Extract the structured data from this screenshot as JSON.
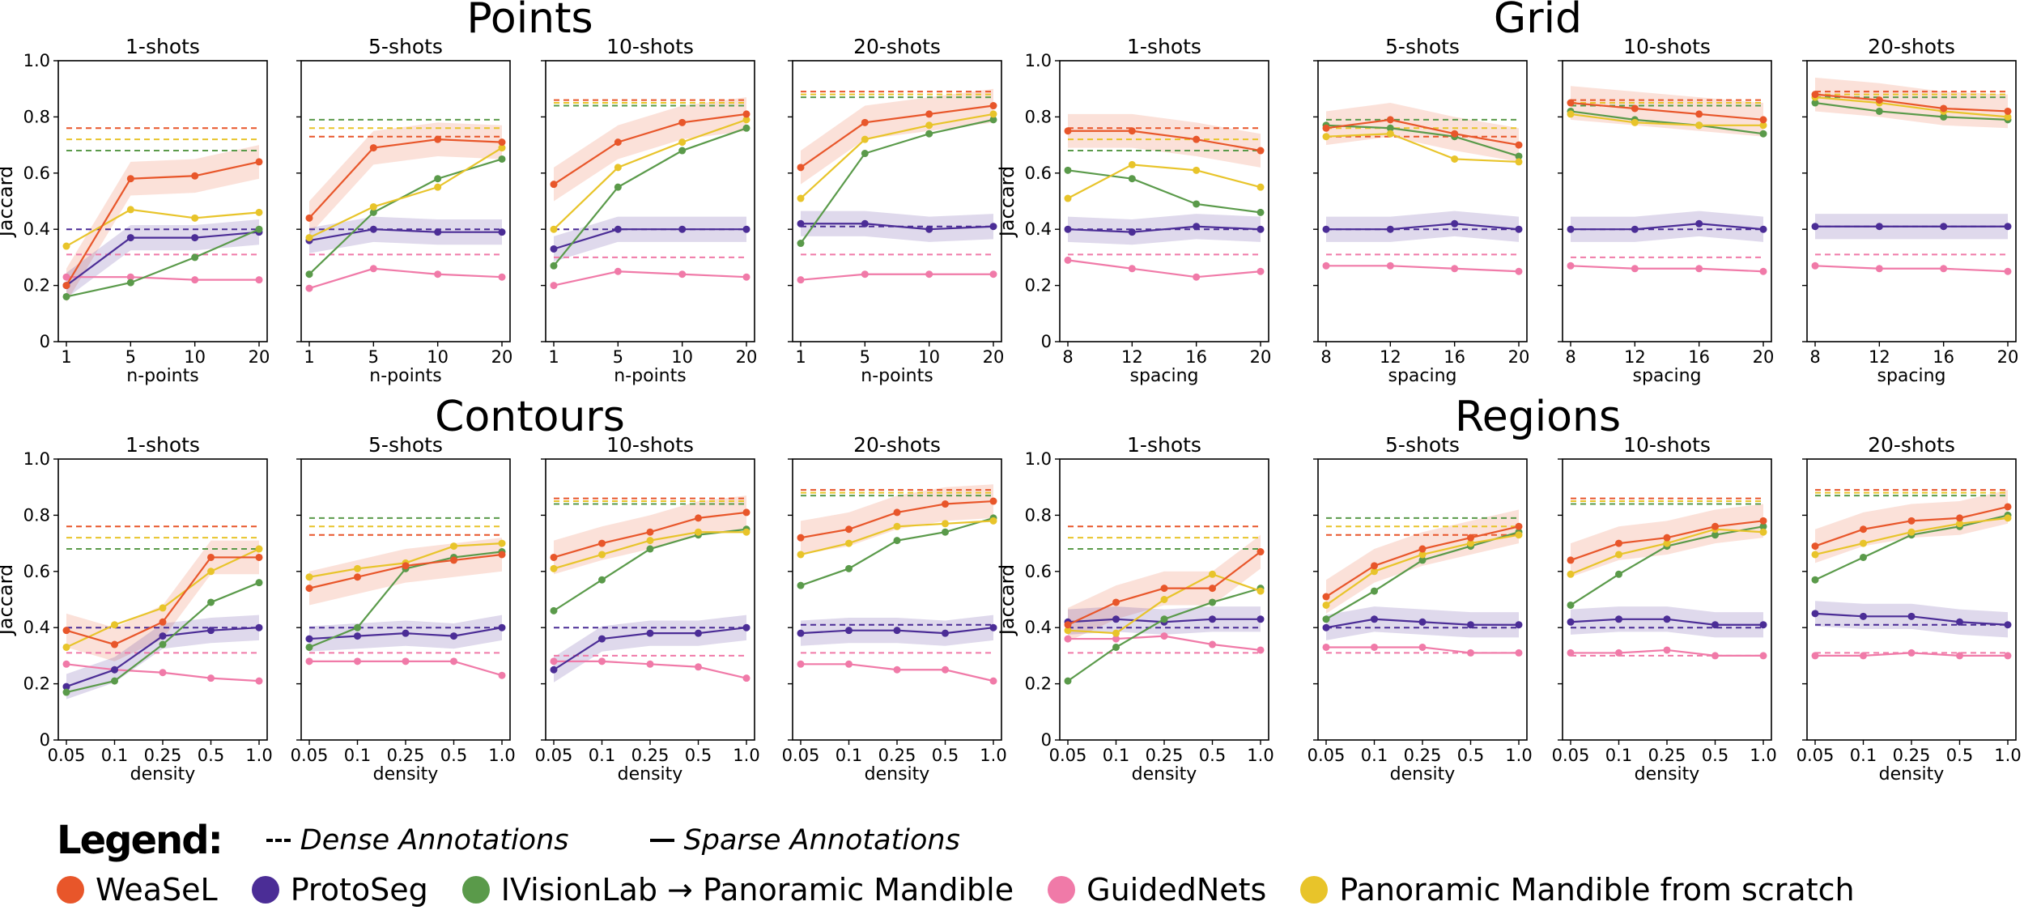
{
  "colors": {
    "weasel": "#e8562a",
    "protoseg": "#4b2d96",
    "ivisionlab": "#5a9a4a",
    "guidednets": "#f07aa8",
    "scratch": "#e8c42a"
  },
  "legend": {
    "title": "Legend:",
    "styles": [
      {
        "kind": "dashed",
        "label": "Dense Annotations"
      },
      {
        "kind": "solid",
        "label": "Sparse Annotations"
      }
    ],
    "methods": [
      {
        "key": "weasel",
        "label": "WeaSeL"
      },
      {
        "key": "protoseg",
        "label": "ProtoSeg"
      },
      {
        "key": "ivisionlab",
        "label": "IVisionLab → Panoramic Mandible"
      },
      {
        "key": "guidednets",
        "label": "GuidedNets"
      },
      {
        "key": "scratch",
        "label": "Panoramic Mandible from scratch"
      }
    ]
  },
  "chart_data": [
    {
      "title": "Points",
      "type": "line",
      "xlabel": "n-points",
      "ylabel": "Jaccard",
      "ylim": [
        0,
        1.0
      ],
      "x": [
        "1",
        "5",
        "10",
        "20"
      ],
      "panels": [
        {
          "title": "1-shots",
          "series": {
            "weasel": [
              0.2,
              0.58,
              0.59,
              0.64
            ],
            "protoseg": [
              0.2,
              0.37,
              0.37,
              0.39
            ],
            "ivisionlab": [
              0.16,
              0.21,
              0.3,
              0.4
            ],
            "guidednets": [
              0.23,
              0.23,
              0.22,
              0.22
            ],
            "scratch": [
              0.34,
              0.47,
              0.44,
              0.46
            ]
          },
          "dense": {
            "weasel": 0.76,
            "protoseg": 0.4,
            "ivisionlab": 0.68,
            "guidednets": 0.31,
            "scratch": 0.72
          }
        },
        {
          "title": "5-shots",
          "series": {
            "weasel": [
              0.44,
              0.69,
              0.72,
              0.71
            ],
            "protoseg": [
              0.36,
              0.4,
              0.39,
              0.39
            ],
            "ivisionlab": [
              0.24,
              0.46,
              0.58,
              0.65
            ],
            "guidednets": [
              0.19,
              0.26,
              0.24,
              0.23
            ],
            "scratch": [
              0.37,
              0.48,
              0.55,
              0.69
            ]
          },
          "dense": {
            "weasel": 0.73,
            "protoseg": 0.4,
            "ivisionlab": 0.79,
            "guidednets": 0.31,
            "scratch": 0.76
          }
        },
        {
          "title": "10-shots",
          "series": {
            "weasel": [
              0.56,
              0.71,
              0.78,
              0.81
            ],
            "protoseg": [
              0.33,
              0.4,
              0.4,
              0.4
            ],
            "ivisionlab": [
              0.27,
              0.55,
              0.68,
              0.76
            ],
            "guidednets": [
              0.2,
              0.25,
              0.24,
              0.23
            ],
            "scratch": [
              0.4,
              0.62,
              0.71,
              0.79
            ]
          },
          "dense": {
            "weasel": 0.86,
            "protoseg": 0.4,
            "ivisionlab": 0.84,
            "guidednets": 0.3,
            "scratch": 0.85
          }
        },
        {
          "title": "20-shots",
          "series": {
            "weasel": [
              0.62,
              0.78,
              0.81,
              0.84
            ],
            "protoseg": [
              0.42,
              0.42,
              0.4,
              0.41
            ],
            "ivisionlab": [
              0.35,
              0.67,
              0.74,
              0.79
            ],
            "guidednets": [
              0.22,
              0.24,
              0.24,
              0.24
            ],
            "scratch": [
              0.51,
              0.72,
              0.77,
              0.81
            ]
          },
          "dense": {
            "weasel": 0.89,
            "protoseg": 0.41,
            "ivisionlab": 0.87,
            "guidednets": 0.31,
            "scratch": 0.88
          }
        }
      ]
    },
    {
      "title": "Grid",
      "type": "line",
      "xlabel": "spacing",
      "ylabel": "Jaccard",
      "ylim": [
        0,
        1.0
      ],
      "x": [
        "8",
        "12",
        "16",
        "20"
      ],
      "panels": [
        {
          "title": "1-shots",
          "series": {
            "weasel": [
              0.75,
              0.75,
              0.72,
              0.68
            ],
            "protoseg": [
              0.4,
              0.39,
              0.41,
              0.4
            ],
            "ivisionlab": [
              0.61,
              0.58,
              0.49,
              0.46
            ],
            "guidednets": [
              0.29,
              0.26,
              0.23,
              0.25
            ],
            "scratch": [
              0.51,
              0.63,
              0.61,
              0.55
            ]
          },
          "dense": {
            "weasel": 0.76,
            "protoseg": 0.4,
            "ivisionlab": 0.68,
            "guidednets": 0.31,
            "scratch": 0.72
          }
        },
        {
          "title": "5-shots",
          "series": {
            "weasel": [
              0.76,
              0.79,
              0.74,
              0.7
            ],
            "protoseg": [
              0.4,
              0.4,
              0.42,
              0.4
            ],
            "ivisionlab": [
              0.77,
              0.76,
              0.73,
              0.66
            ],
            "guidednets": [
              0.27,
              0.27,
              0.26,
              0.25
            ],
            "scratch": [
              0.73,
              0.74,
              0.65,
              0.64
            ]
          },
          "dense": {
            "weasel": 0.73,
            "protoseg": 0.4,
            "ivisionlab": 0.79,
            "guidednets": 0.31,
            "scratch": 0.76
          }
        },
        {
          "title": "10-shots",
          "series": {
            "weasel": [
              0.85,
              0.83,
              0.81,
              0.79
            ],
            "protoseg": [
              0.4,
              0.4,
              0.42,
              0.4
            ],
            "ivisionlab": [
              0.82,
              0.79,
              0.77,
              0.74
            ],
            "guidednets": [
              0.27,
              0.26,
              0.26,
              0.25
            ],
            "scratch": [
              0.81,
              0.78,
              0.77,
              0.77
            ]
          },
          "dense": {
            "weasel": 0.86,
            "protoseg": 0.4,
            "ivisionlab": 0.84,
            "guidednets": 0.3,
            "scratch": 0.85
          }
        },
        {
          "title": "20-shots",
          "series": {
            "weasel": [
              0.88,
              0.86,
              0.83,
              0.82
            ],
            "protoseg": [
              0.41,
              0.41,
              0.41,
              0.41
            ],
            "ivisionlab": [
              0.85,
              0.82,
              0.8,
              0.79
            ],
            "guidednets": [
              0.27,
              0.26,
              0.26,
              0.25
            ],
            "scratch": [
              0.87,
              0.85,
              0.82,
              0.8
            ]
          },
          "dense": {
            "weasel": 0.89,
            "protoseg": 0.41,
            "ivisionlab": 0.87,
            "guidednets": 0.31,
            "scratch": 0.88
          }
        }
      ]
    },
    {
      "title": "Contours",
      "type": "line",
      "xlabel": "density",
      "ylabel": "Jaccard",
      "ylim": [
        0,
        1.0
      ],
      "x": [
        "0.05",
        "0.1",
        "0.25",
        "0.5",
        "1.0"
      ],
      "panels": [
        {
          "title": "1-shots",
          "series": {
            "weasel": [
              0.39,
              0.34,
              0.42,
              0.65,
              0.65
            ],
            "protoseg": [
              0.19,
              0.25,
              0.37,
              0.39,
              0.4
            ],
            "ivisionlab": [
              0.17,
              0.21,
              0.34,
              0.49,
              0.56
            ],
            "guidednets": [
              0.27,
              0.25,
              0.24,
              0.22,
              0.21
            ],
            "scratch": [
              0.33,
              0.41,
              0.47,
              0.6,
              0.68
            ]
          },
          "dense": {
            "weasel": 0.76,
            "protoseg": 0.4,
            "ivisionlab": 0.68,
            "guidednets": 0.31,
            "scratch": 0.72
          }
        },
        {
          "title": "5-shots",
          "series": {
            "weasel": [
              0.54,
              0.58,
              0.62,
              0.64,
              0.66
            ],
            "protoseg": [
              0.36,
              0.37,
              0.38,
              0.37,
              0.4
            ],
            "ivisionlab": [
              0.33,
              0.4,
              0.61,
              0.65,
              0.67
            ],
            "guidednets": [
              0.28,
              0.28,
              0.28,
              0.28,
              0.23
            ],
            "scratch": [
              0.58,
              0.61,
              0.63,
              0.69,
              0.7
            ]
          },
          "dense": {
            "weasel": 0.73,
            "protoseg": 0.4,
            "ivisionlab": 0.79,
            "guidednets": 0.31,
            "scratch": 0.76
          }
        },
        {
          "title": "10-shots",
          "series": {
            "weasel": [
              0.65,
              0.7,
              0.74,
              0.79,
              0.81
            ],
            "protoseg": [
              0.25,
              0.36,
              0.38,
              0.38,
              0.4
            ],
            "ivisionlab": [
              0.46,
              0.57,
              0.68,
              0.73,
              0.75
            ],
            "guidednets": [
              0.28,
              0.28,
              0.27,
              0.26,
              0.22
            ],
            "scratch": [
              0.61,
              0.66,
              0.71,
              0.74,
              0.74
            ]
          },
          "dense": {
            "weasel": 0.86,
            "protoseg": 0.4,
            "ivisionlab": 0.84,
            "guidednets": 0.3,
            "scratch": 0.85
          }
        },
        {
          "title": "20-shots",
          "series": {
            "weasel": [
              0.72,
              0.75,
              0.81,
              0.84,
              0.85
            ],
            "protoseg": [
              0.38,
              0.39,
              0.39,
              0.38,
              0.4
            ],
            "ivisionlab": [
              0.55,
              0.61,
              0.71,
              0.74,
              0.79
            ],
            "guidednets": [
              0.27,
              0.27,
              0.25,
              0.25,
              0.21
            ],
            "scratch": [
              0.66,
              0.7,
              0.76,
              0.77,
              0.78
            ]
          },
          "dense": {
            "weasel": 0.89,
            "protoseg": 0.41,
            "ivisionlab": 0.87,
            "guidednets": 0.31,
            "scratch": 0.88
          }
        }
      ]
    },
    {
      "title": "Regions",
      "type": "line",
      "xlabel": "density",
      "ylabel": "Jaccard",
      "ylim": [
        0,
        1.0
      ],
      "x": [
        "0.05",
        "0.1",
        "0.25",
        "0.5",
        "1.0"
      ],
      "panels": [
        {
          "title": "1-shots",
          "series": {
            "weasel": [
              0.41,
              0.49,
              0.54,
              0.54,
              0.67
            ],
            "protoseg": [
              0.42,
              0.43,
              0.42,
              0.43,
              0.43
            ],
            "ivisionlab": [
              0.21,
              0.33,
              0.43,
              0.49,
              0.54
            ],
            "guidednets": [
              0.36,
              0.36,
              0.37,
              0.34,
              0.32
            ],
            "scratch": [
              0.39,
              0.38,
              0.5,
              0.59,
              0.53
            ]
          },
          "dense": {
            "weasel": 0.76,
            "protoseg": 0.4,
            "ivisionlab": 0.68,
            "guidednets": 0.31,
            "scratch": 0.72
          }
        },
        {
          "title": "5-shots",
          "series": {
            "weasel": [
              0.51,
              0.62,
              0.68,
              0.72,
              0.76
            ],
            "protoseg": [
              0.4,
              0.43,
              0.42,
              0.41,
              0.41
            ],
            "ivisionlab": [
              0.43,
              0.53,
              0.64,
              0.69,
              0.74
            ],
            "guidednets": [
              0.33,
              0.33,
              0.33,
              0.31,
              0.31
            ],
            "scratch": [
              0.48,
              0.6,
              0.66,
              0.7,
              0.73
            ]
          },
          "dense": {
            "weasel": 0.73,
            "protoseg": 0.4,
            "ivisionlab": 0.79,
            "guidednets": 0.31,
            "scratch": 0.76
          }
        },
        {
          "title": "10-shots",
          "series": {
            "weasel": [
              0.64,
              0.7,
              0.72,
              0.76,
              0.78
            ],
            "protoseg": [
              0.42,
              0.43,
              0.43,
              0.41,
              0.41
            ],
            "ivisionlab": [
              0.48,
              0.59,
              0.69,
              0.73,
              0.76
            ],
            "guidednets": [
              0.31,
              0.31,
              0.32,
              0.3,
              0.3
            ],
            "scratch": [
              0.59,
              0.66,
              0.7,
              0.75,
              0.74
            ]
          },
          "dense": {
            "weasel": 0.86,
            "protoseg": 0.4,
            "ivisionlab": 0.84,
            "guidednets": 0.3,
            "scratch": 0.85
          }
        },
        {
          "title": "20-shots",
          "series": {
            "weasel": [
              0.69,
              0.75,
              0.78,
              0.79,
              0.83
            ],
            "protoseg": [
              0.45,
              0.44,
              0.44,
              0.42,
              0.41
            ],
            "ivisionlab": [
              0.57,
              0.65,
              0.73,
              0.76,
              0.8
            ],
            "guidednets": [
              0.3,
              0.3,
              0.31,
              0.3,
              0.3
            ],
            "scratch": [
              0.66,
              0.7,
              0.74,
              0.77,
              0.79
            ]
          },
          "dense": {
            "weasel": 0.89,
            "protoseg": 0.41,
            "ivisionlab": 0.87,
            "guidednets": 0.31,
            "scratch": 0.88
          }
        }
      ]
    }
  ]
}
